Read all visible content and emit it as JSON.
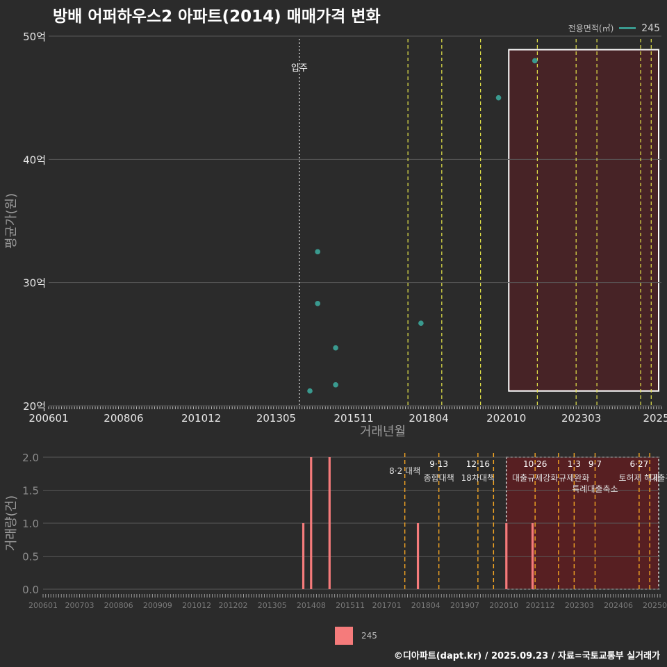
{
  "title": "방배 어퍼하우스2 아파트(2014) 매매가격 변화",
  "legend": {
    "title": "전용면적(㎡)",
    "series_label": "245"
  },
  "footer": "©디아파트(dapt.kr) / 2025.09.23 / 자료=국토교통부 실거래가",
  "chart_data": [
    {
      "type": "scatter",
      "title": "방배 어퍼하우스2 아파트(2014) 매매가격 변화",
      "xlabel": "거래년월",
      "ylabel": "평균가(원)",
      "x_range": [
        2006.0,
        2025.75
      ],
      "ylim": [
        20,
        50
      ],
      "y_ticks": [
        {
          "v": 20,
          "label": "20억"
        },
        {
          "v": 30,
          "label": "30억"
        },
        {
          "v": 40,
          "label": "40억"
        },
        {
          "v": 50,
          "label": "50억"
        }
      ],
      "x_ticks": [
        {
          "v": 2006.0,
          "label": "200601"
        },
        {
          "v": 2008.417,
          "label": "200806"
        },
        {
          "v": 2010.917,
          "label": "201012"
        },
        {
          "v": 2013.333,
          "label": "201305"
        },
        {
          "v": 2015.833,
          "label": "201511"
        },
        {
          "v": 2018.25,
          "label": "201804"
        },
        {
          "v": 2020.75,
          "label": "202010"
        },
        {
          "v": 2023.167,
          "label": "202303"
        },
        {
          "v": 2025.583,
          "label": "2025"
        }
      ],
      "series": [
        {
          "name": "245",
          "color": "#3a9a8f",
          "points": [
            {
              "x": 2014.42,
              "y": 21.2
            },
            {
              "x": 2014.67,
              "y": 32.5
            },
            {
              "x": 2014.67,
              "y": 28.3
            },
            {
              "x": 2015.25,
              "y": 24.7
            },
            {
              "x": 2015.25,
              "y": 21.7
            },
            {
              "x": 2018.0,
              "y": 26.7
            },
            {
              "x": 2020.5,
              "y": 45.0
            },
            {
              "x": 2021.67,
              "y": 48.0
            }
          ]
        }
      ],
      "event_line": {
        "x": 2014.08,
        "label": "입주"
      },
      "policy_lines": [
        2017.58,
        2018.67,
        2019.92,
        2021.75,
        2023.0,
        2023.67,
        2025.08,
        2025.42
      ],
      "highlight_range": [
        2020.83,
        2025.75
      ],
      "highlight_y": [
        21.2,
        48.9
      ]
    },
    {
      "type": "bar",
      "ylabel": "거래량(건)",
      "x_range": [
        2006.0,
        2025.75
      ],
      "ylim": [
        0,
        2.0
      ],
      "y_ticks": [
        {
          "v": 0,
          "label": "0.0"
        },
        {
          "v": 0.5,
          "label": "0.5"
        },
        {
          "v": 1.0,
          "label": "1.0"
        },
        {
          "v": 1.5,
          "label": "1.5"
        },
        {
          "v": 2.0,
          "label": "2.0"
        }
      ],
      "x_ticks": [
        {
          "v": 2006.0,
          "label": "200601"
        },
        {
          "v": 2007.167,
          "label": "200703"
        },
        {
          "v": 2008.417,
          "label": "200806"
        },
        {
          "v": 2009.667,
          "label": "200909"
        },
        {
          "v": 2010.917,
          "label": "201012"
        },
        {
          "v": 2012.083,
          "label": "201202"
        },
        {
          "v": 2013.333,
          "label": "201305"
        },
        {
          "v": 2014.583,
          "label": "201408"
        },
        {
          "v": 2015.833,
          "label": "201511"
        },
        {
          "v": 2017.0,
          "label": "201701"
        },
        {
          "v": 2018.25,
          "label": "201804"
        },
        {
          "v": 2019.5,
          "label": "201907"
        },
        {
          "v": 2020.75,
          "label": "202010"
        },
        {
          "v": 2021.917,
          "label": "202112"
        },
        {
          "v": 2023.167,
          "label": "202303"
        },
        {
          "v": 2024.417,
          "label": "202406"
        },
        {
          "v": 2025.583,
          "label": "20250"
        }
      ],
      "series": [
        {
          "name": "245",
          "color": "#f57b7b",
          "bars": [
            {
              "x": 2014.33,
              "v": 1
            },
            {
              "x": 2014.58,
              "v": 2
            },
            {
              "x": 2015.17,
              "v": 2
            },
            {
              "x": 2018.0,
              "v": 1
            },
            {
              "x": 2020.83,
              "v": 1
            },
            {
              "x": 2021.67,
              "v": 1
            }
          ]
        }
      ],
      "policy_events": [
        {
          "x": 2017.58,
          "date": "",
          "label": "8·2 대책"
        },
        {
          "x": 2018.67,
          "date": "9·13",
          "label": "종합대책"
        },
        {
          "x": 2019.92,
          "date": "12·16",
          "label": "18차대책"
        },
        {
          "x": 2020.42,
          "date": "",
          "label": ""
        },
        {
          "x": 2021.75,
          "date": "10·26",
          "label": "대출규제강화"
        },
        {
          "x": 2022.5,
          "date": "",
          "label": ""
        },
        {
          "x": 2023.0,
          "date": "1·3",
          "label": "규제완화"
        },
        {
          "x": 2023.67,
          "date": "9·7",
          "label": "특례대출축소"
        },
        {
          "x": 2025.08,
          "date": "6·27",
          "label": "토허제 해제"
        },
        {
          "x": 2025.42,
          "date": "",
          "label": "대출규"
        }
      ],
      "highlight_range": [
        2020.83,
        2025.75
      ]
    }
  ]
}
